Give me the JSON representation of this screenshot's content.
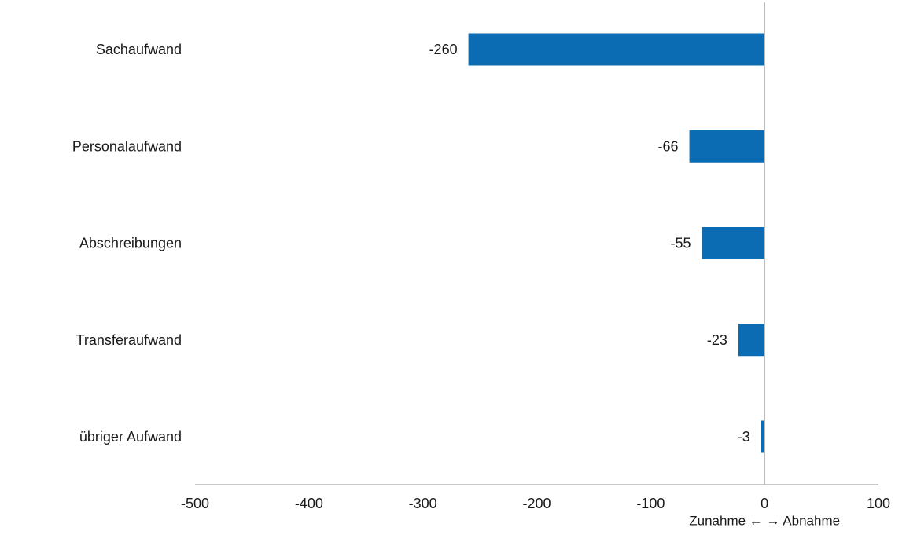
{
  "chart_data": {
    "type": "bar",
    "orientation": "horizontal",
    "categories": [
      "Sachaufwand",
      "Personalaufwand",
      "Abschreibungen",
      "Transferaufwand",
      "übriger Aufwand"
    ],
    "values": [
      -260,
      -66,
      -55,
      -23,
      -3
    ],
    "value_labels": [
      "-260",
      "-66",
      "-55",
      "-23",
      "-3"
    ],
    "xlim": [
      -500,
      100
    ],
    "xticks": [
      -500,
      -400,
      -300,
      -200,
      -100,
      0,
      100
    ],
    "xtick_labels": [
      "-500",
      "-400",
      "-300",
      "-200",
      "-100",
      "0",
      "100"
    ],
    "xlabel": "Zunahme ← → Abnahme",
    "grid": false,
    "legend": "none",
    "bar_color": "#0b6cb3",
    "axis_color": "#a6a6a6"
  }
}
